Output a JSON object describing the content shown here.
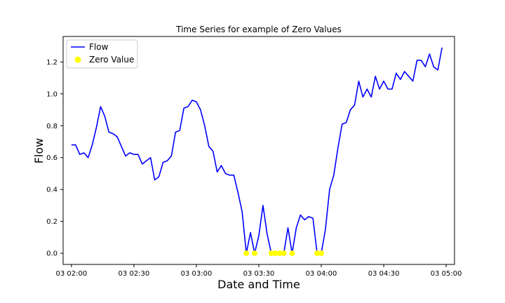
{
  "chart_data": {
    "type": "line",
    "title": "Time Series for example of Zero Values",
    "xlabel": "Date and Time",
    "ylabel": "Flow",
    "xlim": [
      "03 01:56",
      "03 05:04"
    ],
    "ylim": [
      -0.07,
      1.36
    ],
    "x_ticks": [
      "03 02:00",
      "03 02:30",
      "03 03:00",
      "03 03:30",
      "03 04:00",
      "03 04:30",
      "03 05:00"
    ],
    "y_ticks": [
      "0.0",
      "0.2",
      "0.4",
      "0.6",
      "0.8",
      "1.0",
      "1.2"
    ],
    "grid": false,
    "legend_position": "upper-left",
    "x": [
      "03 02:00",
      "03 02:02",
      "03 02:04",
      "03 02:06",
      "03 02:08",
      "03 02:10",
      "03 02:12",
      "03 02:14",
      "03 02:16",
      "03 02:18",
      "03 02:20",
      "03 02:22",
      "03 02:24",
      "03 02:26",
      "03 02:28",
      "03 02:30",
      "03 02:32",
      "03 02:34",
      "03 02:36",
      "03 02:38",
      "03 02:40",
      "03 02:42",
      "03 02:44",
      "03 02:46",
      "03 02:48",
      "03 02:50",
      "03 02:52",
      "03 02:54",
      "03 02:56",
      "03 02:58",
      "03 03:00",
      "03 03:02",
      "03 03:04",
      "03 03:06",
      "03 03:08",
      "03 03:10",
      "03 03:12",
      "03 03:14",
      "03 03:16",
      "03 03:18",
      "03 03:20",
      "03 03:22",
      "03 03:24",
      "03 03:26",
      "03 03:28",
      "03 03:30",
      "03 03:32",
      "03 03:34",
      "03 03:36",
      "03 03:38",
      "03 03:40",
      "03 03:42",
      "03 03:44",
      "03 03:46",
      "03 03:48",
      "03 03:50",
      "03 03:52",
      "03 03:54",
      "03 03:56",
      "03 03:58",
      "03 04:00",
      "03 04:02",
      "03 04:04",
      "03 04:06",
      "03 04:08",
      "03 04:10",
      "03 04:12",
      "03 04:14",
      "03 04:16",
      "03 04:18",
      "03 04:20",
      "03 04:22",
      "03 04:24",
      "03 04:26",
      "03 04:28",
      "03 04:30",
      "03 04:32",
      "03 04:34",
      "03 04:36",
      "03 04:38",
      "03 04:40",
      "03 04:42",
      "03 04:44",
      "03 04:46",
      "03 04:48",
      "03 04:50",
      "03 04:52",
      "03 04:54",
      "03 04:56",
      "03 04:58"
    ],
    "series": [
      {
        "name": "Flow",
        "color": "#0000ff",
        "values": [
          0.68,
          0.68,
          0.62,
          0.63,
          0.6,
          0.68,
          0.79,
          0.92,
          0.86,
          0.76,
          0.75,
          0.73,
          0.67,
          0.61,
          0.63,
          0.62,
          0.62,
          0.56,
          0.58,
          0.6,
          0.46,
          0.48,
          0.57,
          0.58,
          0.61,
          0.76,
          0.77,
          0.91,
          0.92,
          0.96,
          0.95,
          0.9,
          0.8,
          0.67,
          0.64,
          0.51,
          0.55,
          0.5,
          0.49,
          0.49,
          0.38,
          0.26,
          0.0,
          0.13,
          0.0,
          0.11,
          0.3,
          0.12,
          0.0,
          0.0,
          0.0,
          0.0,
          0.16,
          0.0,
          0.16,
          0.24,
          0.21,
          0.23,
          0.22,
          0.0,
          0.0,
          0.15,
          0.4,
          0.49,
          0.66,
          0.81,
          0.82,
          0.9,
          0.93,
          1.08,
          0.98,
          1.03,
          0.98,
          1.11,
          1.03,
          1.08,
          1.03,
          1.03,
          1.13,
          1.09,
          1.14,
          1.11,
          1.08,
          1.21,
          1.21,
          1.17,
          1.25,
          1.17,
          1.15,
          1.29
        ]
      },
      {
        "name": "Zero Value",
        "color": "#ffff00",
        "marker": "circle",
        "x": [
          "03 03:24",
          "03 03:28",
          "03 03:36",
          "03 03:38",
          "03 03:40",
          "03 03:42",
          "03 03:46",
          "03 03:58",
          "03 04:00"
        ],
        "values": [
          0,
          0,
          0,
          0,
          0,
          0,
          0,
          0,
          0
        ]
      }
    ]
  }
}
